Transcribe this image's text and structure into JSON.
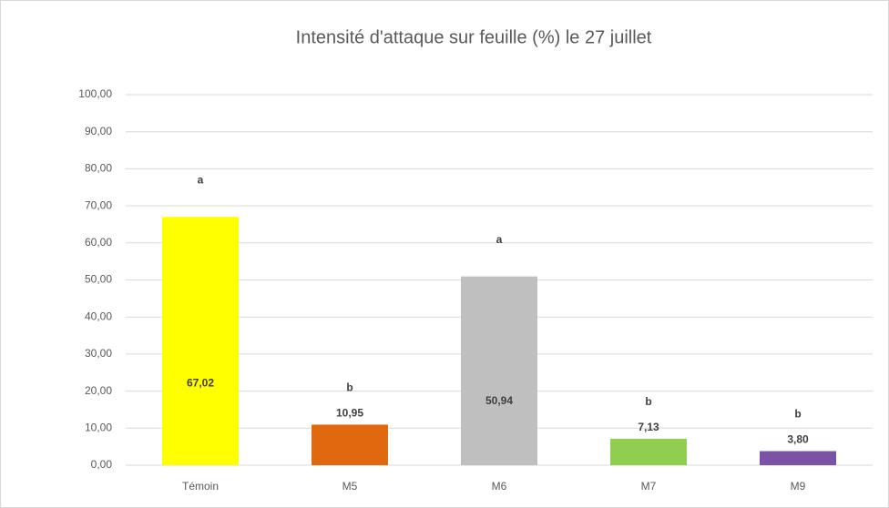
{
  "chart_data": {
    "type": "bar",
    "title": "Intensité d'attaque sur feuille (%) le 27 juillet",
    "categories": [
      "Témoin",
      "M5",
      "M6",
      "M7",
      "M9"
    ],
    "values": [
      67.02,
      10.95,
      50.94,
      7.13,
      3.8
    ],
    "value_labels": [
      "67,02",
      "10,95",
      "50,94",
      "7,13",
      "3,80"
    ],
    "annotations": [
      "a",
      "b",
      "a",
      "b",
      "b"
    ],
    "colors": [
      "#ffff00",
      "#e0680f",
      "#bfbfbf",
      "#8fce4e",
      "#7b52a6"
    ],
    "ylim": [
      0,
      100
    ],
    "yticks": [
      {
        "value": 0,
        "label": "0,00"
      },
      {
        "value": 10,
        "label": "10,00"
      },
      {
        "value": 20,
        "label": "20,00"
      },
      {
        "value": 30,
        "label": "30,00"
      },
      {
        "value": 40,
        "label": "40,00"
      },
      {
        "value": 50,
        "label": "50,00"
      },
      {
        "value": 60,
        "label": "60,00"
      },
      {
        "value": 70,
        "label": "70,00"
      },
      {
        "value": 80,
        "label": "80,00"
      },
      {
        "value": 90,
        "label": "90,00"
      },
      {
        "value": 100,
        "label": "100,00"
      }
    ],
    "grid": true
  }
}
